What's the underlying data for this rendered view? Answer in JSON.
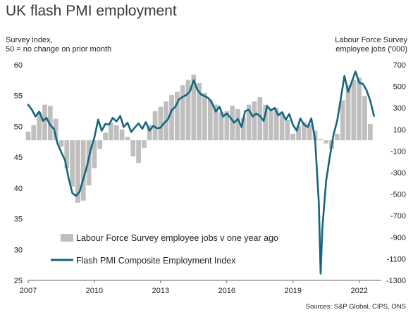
{
  "title": "UK flash PMI employment",
  "source": "Sources: S&P Global, CIPS, ONS",
  "chart_data": {
    "type": "bar",
    "left_axis": {
      "label_lines": [
        "Survey index,",
        "50 = no change on prior month"
      ],
      "ylim": [
        25,
        60
      ],
      "ticks": [
        25,
        30,
        35,
        40,
        45,
        50,
        55,
        60
      ]
    },
    "right_axis": {
      "label_lines": [
        "Labour Force Survey",
        "employee jobs ('000)"
      ],
      "ylim": [
        -1300,
        700
      ],
      "ticks": [
        -1300,
        -1100,
        -900,
        -700,
        -500,
        -300,
        -100,
        100,
        300,
        500,
        700
      ]
    },
    "x_axis": {
      "xlim": [
        2007,
        2023
      ],
      "ticks": [
        "2007",
        "2010",
        "2013",
        "2016",
        "2019",
        "2022"
      ]
    },
    "grid": false,
    "legend": "bottom-center",
    "colors": {
      "bars": "#bfbfbf",
      "line": "#14667f"
    },
    "series": [
      {
        "name": "Labour Force Survey employee jobs v one year ago",
        "axis": "right",
        "kind": "bar",
        "x": [
          2007.0,
          2007.25,
          2007.5,
          2007.75,
          2008.0,
          2008.25,
          2008.5,
          2008.75,
          2009.0,
          2009.25,
          2009.5,
          2009.75,
          2010.0,
          2010.25,
          2010.5,
          2010.75,
          2011.0,
          2011.25,
          2011.5,
          2011.75,
          2012.0,
          2012.25,
          2012.5,
          2012.75,
          2013.0,
          2013.25,
          2013.5,
          2013.75,
          2014.0,
          2014.25,
          2014.5,
          2014.75,
          2015.0,
          2015.25,
          2015.5,
          2015.75,
          2016.0,
          2016.25,
          2016.5,
          2016.75,
          2017.0,
          2017.25,
          2017.5,
          2017.75,
          2018.0,
          2018.25,
          2018.5,
          2018.75,
          2019.0,
          2019.25,
          2019.5,
          2019.75,
          2020.0,
          2020.25,
          2020.5,
          2020.75,
          2021.0,
          2021.25,
          2021.5,
          2021.75,
          2022.0,
          2022.25,
          2022.5
        ],
        "values": [
          80,
          140,
          260,
          330,
          320,
          200,
          -60,
          -260,
          -430,
          -580,
          -560,
          -420,
          -260,
          -80,
          70,
          160,
          140,
          100,
          30,
          -150,
          -210,
          -70,
          140,
          270,
          310,
          360,
          420,
          450,
          510,
          560,
          610,
          530,
          440,
          380,
          330,
          260,
          270,
          320,
          290,
          210,
          330,
          360,
          400,
          330,
          290,
          300,
          260,
          190,
          60,
          130,
          170,
          150,
          90,
          10,
          -30,
          -80,
          60,
          370,
          510,
          560,
          580,
          410,
          150
        ]
      },
      {
        "name": "Flash PMI Composite Employment Index",
        "axis": "left",
        "kind": "line",
        "x": [
          2007.0,
          2007.17,
          2007.33,
          2007.5,
          2007.67,
          2007.83,
          2008.0,
          2008.17,
          2008.33,
          2008.5,
          2008.67,
          2008.83,
          2009.0,
          2009.17,
          2009.33,
          2009.5,
          2009.67,
          2009.83,
          2010.0,
          2010.17,
          2010.33,
          2010.5,
          2010.67,
          2010.83,
          2011.0,
          2011.17,
          2011.33,
          2011.5,
          2011.67,
          2011.83,
          2012.0,
          2012.17,
          2012.33,
          2012.5,
          2012.67,
          2012.83,
          2013.0,
          2013.17,
          2013.33,
          2013.5,
          2013.67,
          2013.83,
          2014.0,
          2014.17,
          2014.33,
          2014.5,
          2014.67,
          2014.83,
          2015.0,
          2015.17,
          2015.33,
          2015.5,
          2015.67,
          2015.83,
          2016.0,
          2016.17,
          2016.33,
          2016.5,
          2016.67,
          2016.83,
          2017.0,
          2017.17,
          2017.33,
          2017.5,
          2017.67,
          2017.83,
          2018.0,
          2018.17,
          2018.33,
          2018.5,
          2018.67,
          2018.83,
          2019.0,
          2019.17,
          2019.33,
          2019.5,
          2019.67,
          2019.83,
          2020.0,
          2020.17,
          2020.25,
          2020.33,
          2020.5,
          2020.67,
          2020.83,
          2021.0,
          2021.17,
          2021.33,
          2021.5,
          2021.67,
          2021.83,
          2022.0,
          2022.17,
          2022.33,
          2022.5,
          2022.67
        ],
        "values": [
          53.5,
          52.7,
          51.6,
          52.4,
          50.9,
          51.4,
          50.2,
          49.6,
          47.2,
          45.8,
          44.5,
          41.6,
          39.2,
          38.7,
          39.4,
          41.5,
          43.6,
          46.2,
          48.2,
          51.1,
          49.3,
          50.4,
          50.3,
          51.4,
          50.8,
          51.7,
          49.9,
          50.6,
          49.1,
          49.8,
          50.5,
          49.6,
          50.7,
          49.3,
          50.1,
          49.7,
          49.8,
          50.6,
          51.1,
          52.6,
          53.2,
          54.4,
          54.8,
          55.1,
          55.7,
          57.5,
          55.9,
          55.2,
          54.9,
          54.6,
          53.8,
          52.4,
          53.2,
          51.6,
          52.1,
          51.4,
          50.6,
          51.2,
          49.9,
          52.5,
          52.7,
          51.6,
          52.1,
          51.7,
          50.9,
          53.3,
          52.6,
          53.0,
          51.8,
          52.3,
          51.1,
          52.0,
          50.2,
          49.3,
          51.3,
          50.3,
          49.9,
          51.3,
          47.9,
          37.5,
          26.1,
          33.5,
          41.1,
          45.1,
          48.6,
          50.9,
          54.6,
          58.2,
          55.6,
          57.3,
          58.9,
          57.1,
          56.9,
          55.9,
          54.2,
          51.7
        ]
      }
    ]
  }
}
